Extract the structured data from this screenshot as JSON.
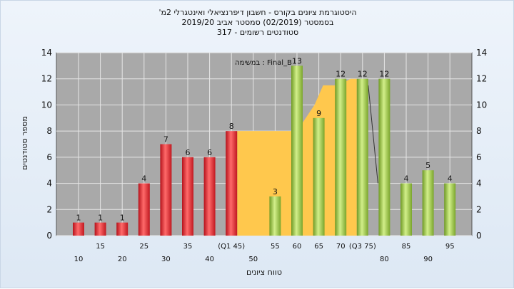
{
  "chart_data": {
    "type": "bar",
    "title_lines": [
      "'היסטוגרמת ציונים בקורס - חשבון דיפרנציאלי ואינטגרלי 2מ",
      "בסמסטר (02/2019) סמסטר אביב 2019/20",
      "סטודנטים רשומים - 317"
    ],
    "xlabel": "טווח ציונים",
    "ylabel": "מספר סטודנטים",
    "legend_text": "במשימה : Final_B",
    "ylim": [
      0,
      14
    ],
    "yticks": [
      "0",
      "2",
      "4",
      "6",
      "8",
      "10",
      "12",
      "14"
    ],
    "categories": [
      "10",
      "15",
      "20",
      "25",
      "30",
      "35",
      "40",
      "(Q1 45)",
      "50",
      "55",
      "60",
      "65",
      "70",
      "(Q3 75)",
      "80",
      "85",
      "90",
      "95"
    ],
    "values": [
      1,
      1,
      1,
      4,
      7,
      6,
      6,
      8,
      null,
      3,
      13,
      9,
      12,
      12,
      12,
      4,
      5,
      4
    ],
    "data_labels": [
      "1",
      "1",
      "1",
      "4",
      "7",
      "6",
      "6",
      "8",
      "",
      "3",
      "13",
      "9",
      "12",
      "12",
      "12",
      "4",
      "5",
      "4"
    ],
    "bar_colors": [
      "red",
      "red",
      "red",
      "red",
      "red",
      "red",
      "red",
      "red",
      "",
      "green",
      "green",
      "green",
      "green",
      "green",
      "green",
      "green",
      "green",
      "green"
    ],
    "iqr_band": {
      "from": "(Q1 45)",
      "to": "(Q3 75)",
      "color": "#ffc84d"
    },
    "colors": {
      "red": "#e8252c",
      "green": "#8fc23a",
      "band": "#ffc84d",
      "plot_bg": "#a9a9a9"
    },
    "grid": true
  }
}
